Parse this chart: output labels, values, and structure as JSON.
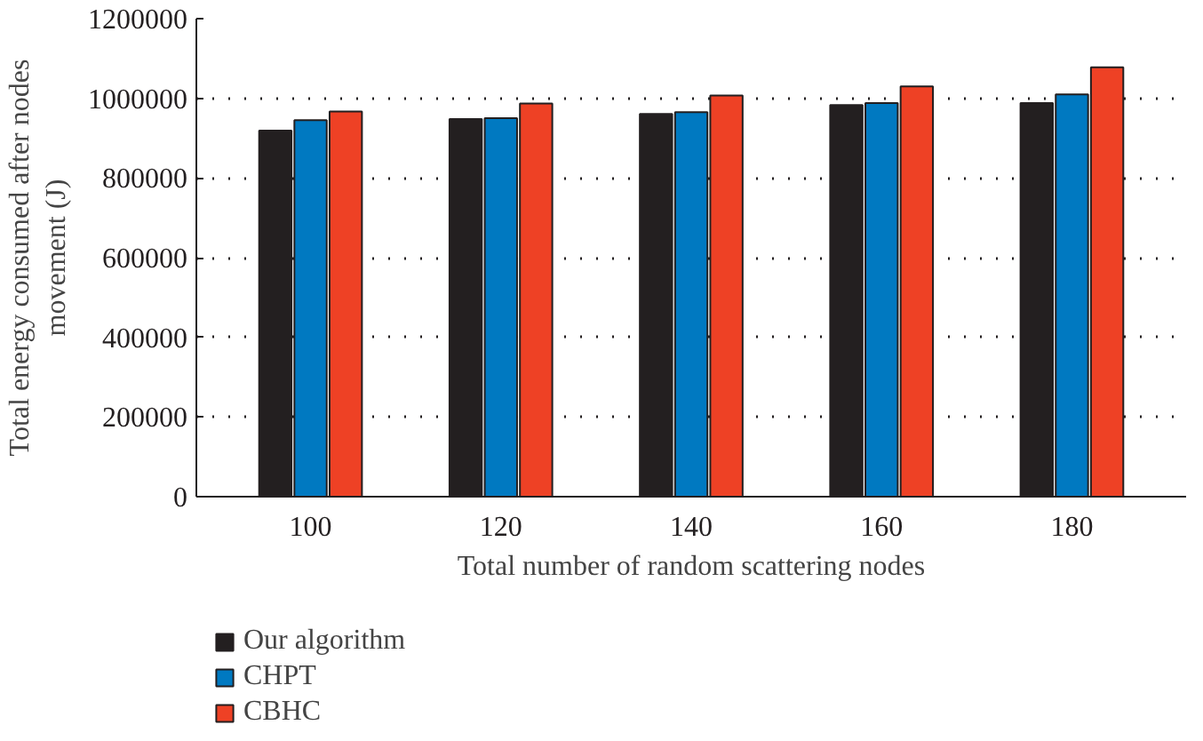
{
  "chart_data": {
    "type": "bar",
    "xlabel": "Total number of random scattering nodes",
    "ylabel": "Total energy consumed after nodes movement (J)",
    "categories": [
      "100",
      "120",
      "140",
      "160",
      "180"
    ],
    "series": [
      {
        "name": "Our algorithm",
        "color": "#231f20",
        "values": [
          919000,
          948000,
          961000,
          983000,
          988000
        ]
      },
      {
        "name": "CHPT",
        "color": "#0079c1",
        "values": [
          945000,
          950000,
          965000,
          988000,
          1010000
        ]
      },
      {
        "name": "CBHC",
        "color": "#ee4125",
        "values": [
          967000,
          987000,
          1007000,
          1030000,
          1078000
        ]
      }
    ],
    "ylim": [
      0,
      1200000
    ],
    "yticks": [
      0,
      200000,
      400000,
      600000,
      800000,
      1000000,
      1200000
    ],
    "grid": "y",
    "legend": "bottom left"
  }
}
